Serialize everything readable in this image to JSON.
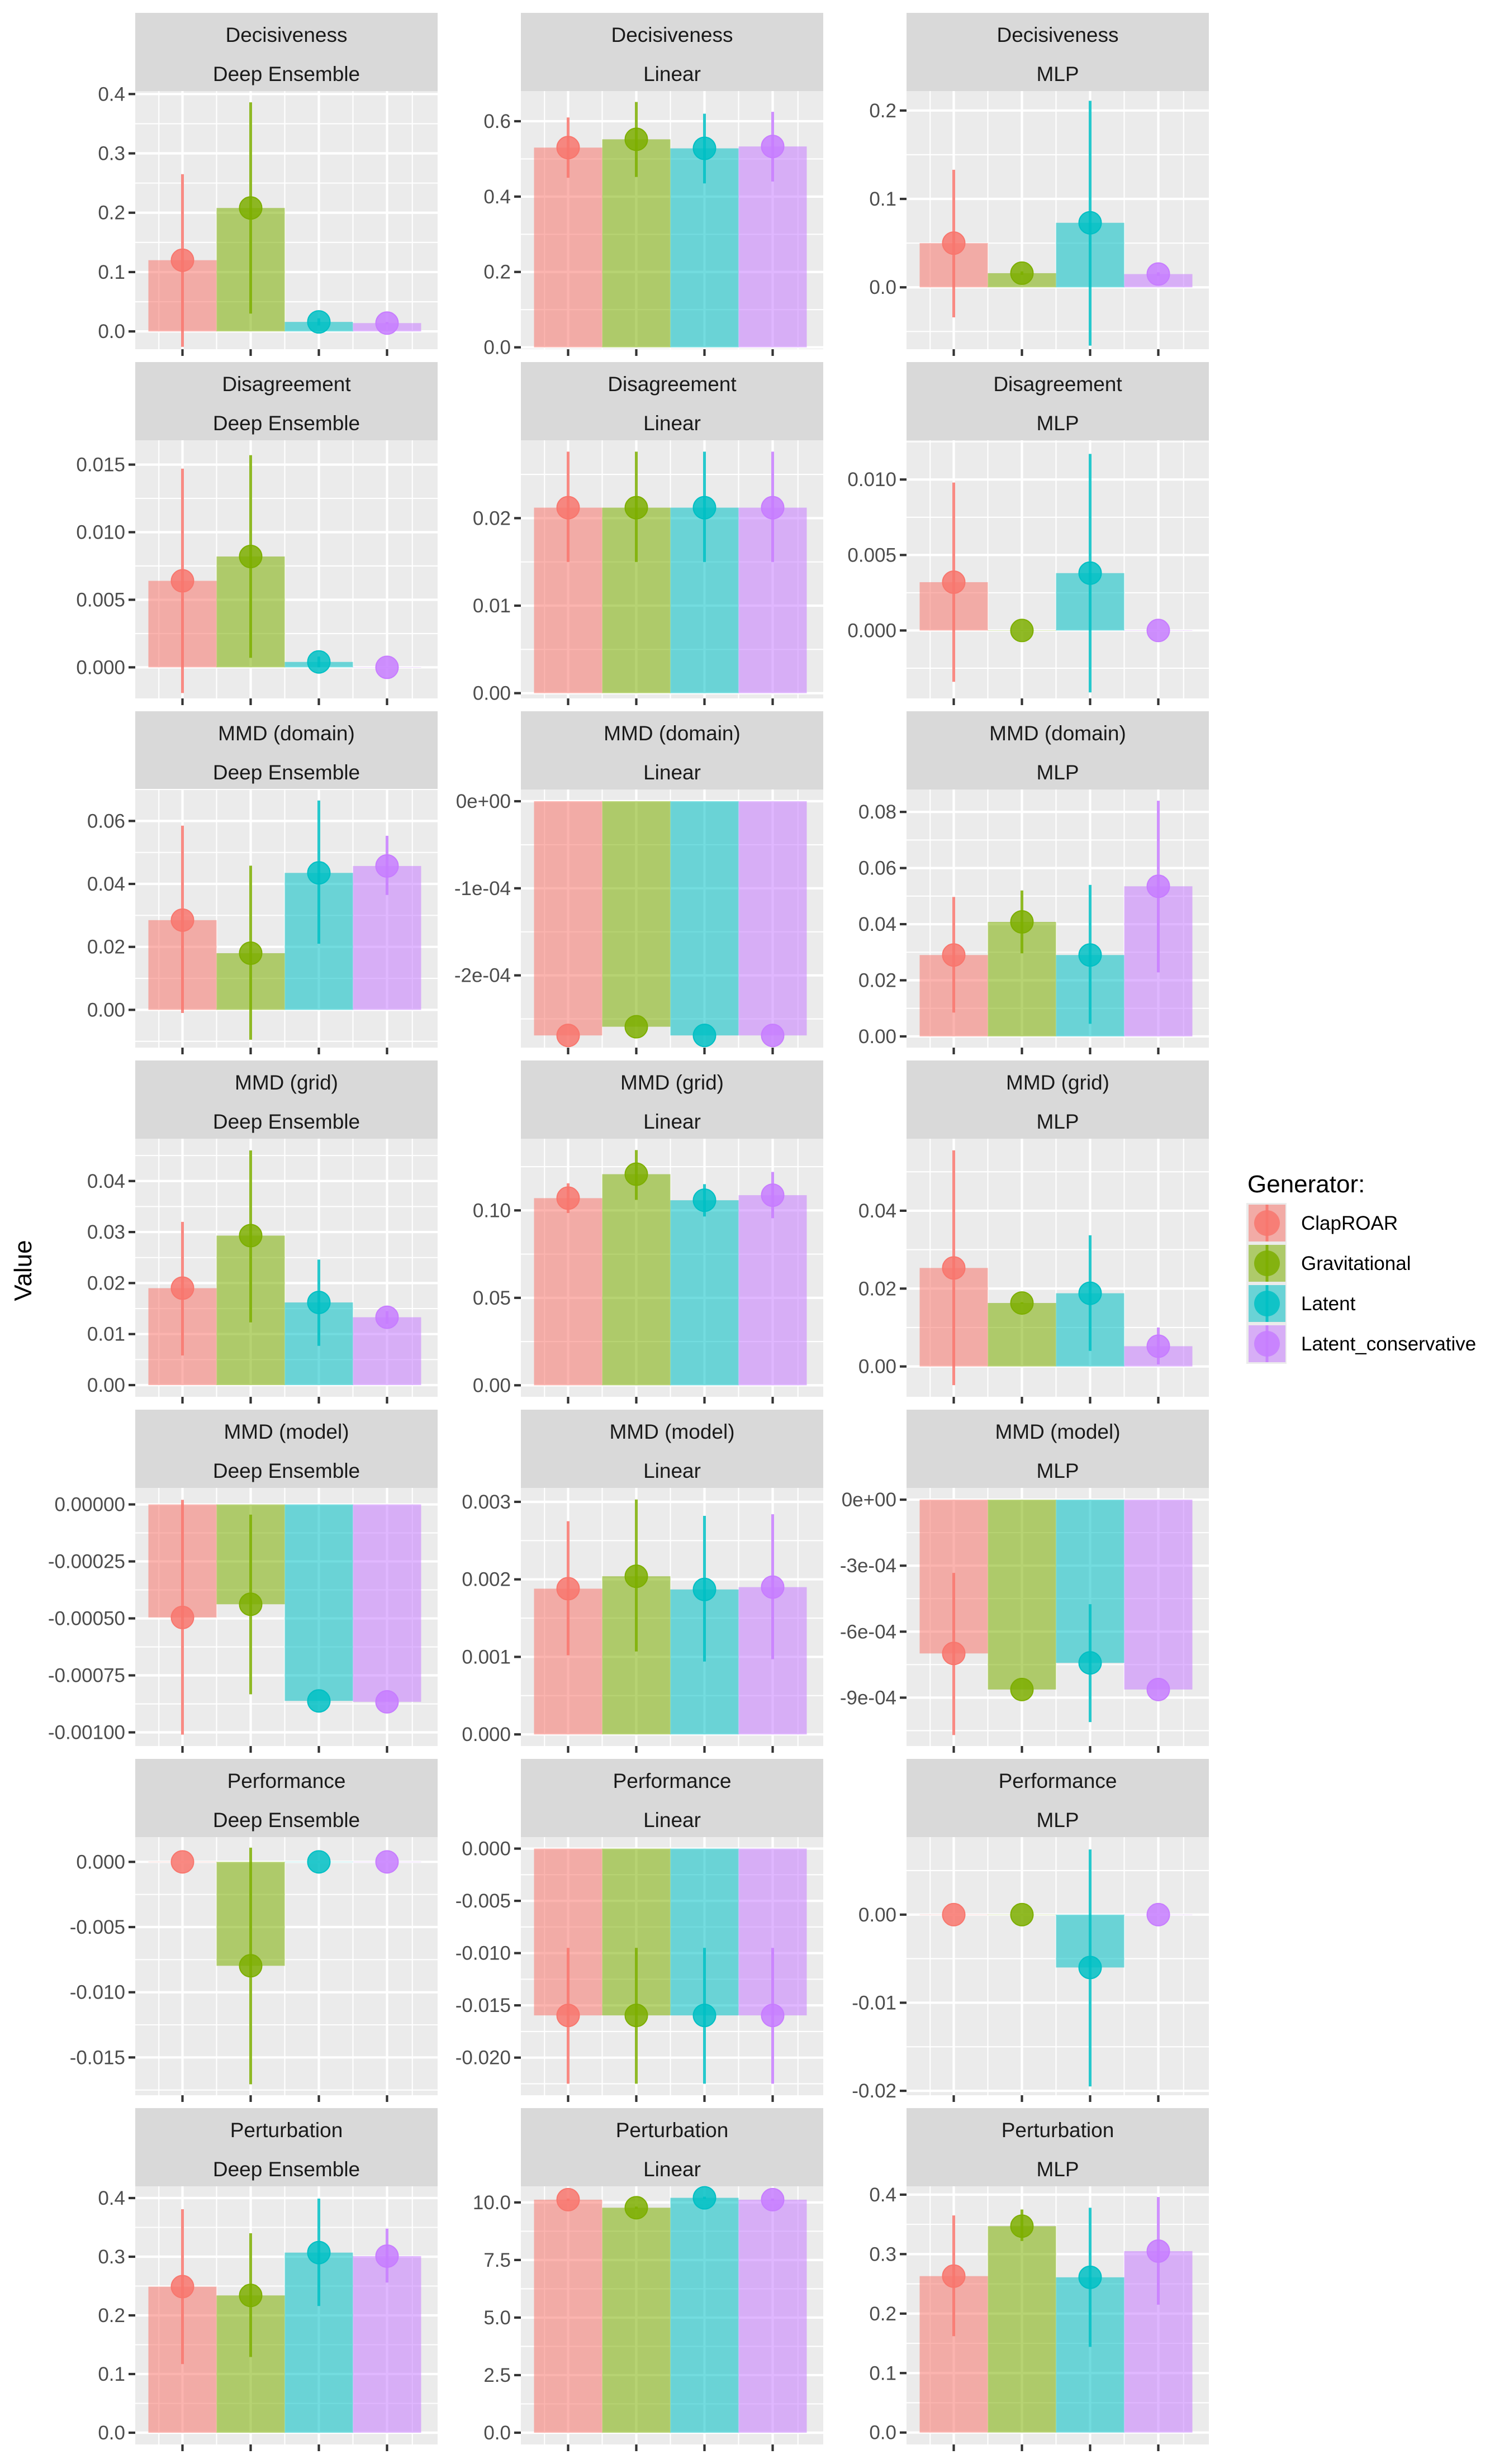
{
  "chart_data": {
    "type": "bar",
    "description": "Faceted bar chart with point + error-bar overlay; rows = metric, columns = model",
    "ylabel": "Value",
    "xlabel": "",
    "legend": {
      "title": "Generator:",
      "placement": "right",
      "entries": [
        "ClapROAR",
        "Gravitational",
        "Latent",
        "Latent_conservative"
      ]
    },
    "series_colors": {
      "ClapROAR": "#F8766D",
      "Gravitational": "#7CAE00",
      "Latent": "#00BFC4",
      "Latent_conservative": "#C77CFF"
    },
    "categories": [
      "ClapROAR",
      "Gravitational",
      "Latent",
      "Latent_conservative"
    ],
    "rows": [
      "Decisiveness",
      "Disagreement",
      "MMD (domain)",
      "MMD (grid)",
      "MMD (model)",
      "Performance",
      "Perturbation"
    ],
    "columns": [
      "Deep Ensemble",
      "Linear",
      "MLP"
    ],
    "panels": [
      {
        "metric": "Decisiveness",
        "model": "Deep Ensemble",
        "ylim": [
          -0.03,
          0.405
        ],
        "yticks": [
          0.0,
          0.1,
          0.2,
          0.3,
          0.4
        ],
        "ytick_labels": [
          "0.0",
          "0.1",
          "0.2",
          "0.3",
          "0.4"
        ],
        "values": [
          0.12,
          0.208,
          0.016,
          0.014
        ],
        "lower": [
          -0.026,
          0.03,
          0.01,
          0.012
        ],
        "upper": [
          0.265,
          0.386,
          0.022,
          0.016
        ]
      },
      {
        "metric": "Decisiveness",
        "model": "Linear",
        "ylim": [
          -0.005,
          0.68
        ],
        "yticks": [
          0.0,
          0.2,
          0.4,
          0.6
        ],
        "ytick_labels": [
          "0.0",
          "0.2",
          "0.4",
          "0.6"
        ],
        "values": [
          0.53,
          0.552,
          0.528,
          0.533
        ],
        "lower": [
          0.45,
          0.452,
          0.435,
          0.44
        ],
        "upper": [
          0.61,
          0.651,
          0.62,
          0.625
        ]
      },
      {
        "metric": "Decisiveness",
        "model": "MLP",
        "ylim": [
          -0.07,
          0.222
        ],
        "yticks": [
          0.0,
          0.1,
          0.2
        ],
        "ytick_labels": [
          "0.0",
          "0.1",
          "0.2"
        ],
        "values": [
          0.05,
          0.016,
          0.073,
          0.015
        ],
        "lower": [
          -0.034,
          0.014,
          -0.066,
          0.013
        ],
        "upper": [
          0.133,
          0.018,
          0.211,
          0.017
        ]
      },
      {
        "metric": "Disagreement",
        "model": "Deep Ensemble",
        "ylim": [
          -0.0023,
          0.0168
        ],
        "yticks": [
          0.0,
          0.005,
          0.01,
          0.015
        ],
        "ytick_labels": [
          "0.000",
          "0.005",
          "0.010",
          "0.015"
        ],
        "values": [
          0.0064,
          0.0082,
          0.0004,
          0.0
        ],
        "lower": [
          -0.0019,
          0.0007,
          0.0,
          0.0
        ],
        "upper": [
          0.0147,
          0.0157,
          0.0008,
          0.0
        ]
      },
      {
        "metric": "Disagreement",
        "model": "Linear",
        "ylim": [
          -0.0006,
          0.0289
        ],
        "yticks": [
          0.0,
          0.01,
          0.02
        ],
        "ytick_labels": [
          "0.00",
          "0.01",
          "0.02"
        ],
        "values": [
          0.0212,
          0.0212,
          0.0212,
          0.0212
        ],
        "lower": [
          0.015,
          0.015,
          0.015,
          0.015
        ],
        "upper": [
          0.0276,
          0.0276,
          0.0276,
          0.0276
        ]
      },
      {
        "metric": "Disagreement",
        "model": "MLP",
        "ylim": [
          -0.0045,
          0.0126
        ],
        "yticks": [
          0.0,
          0.005,
          0.01
        ],
        "ytick_labels": [
          "0.000",
          "0.005",
          "0.010"
        ],
        "values": [
          0.0032,
          0.0,
          0.0038,
          0.0
        ],
        "lower": [
          -0.0034,
          0.0,
          -0.0041,
          0.0
        ],
        "upper": [
          0.0098,
          0.0,
          0.0117,
          0.0
        ]
      },
      {
        "metric": "MMD (domain)",
        "model": "Deep Ensemble",
        "ylim": [
          -0.012,
          0.07
        ],
        "yticks": [
          0.0,
          0.02,
          0.04,
          0.06
        ],
        "ytick_labels": [
          "0.00",
          "0.02",
          "0.04",
          "0.06"
        ],
        "values": [
          0.0285,
          0.018,
          0.0435,
          0.0457
        ],
        "lower": [
          -0.001,
          -0.0095,
          0.021,
          0.0365
        ],
        "upper": [
          0.0585,
          0.0458,
          0.0665,
          0.0553
        ]
      },
      {
        "metric": "MMD (domain)",
        "model": "Linear",
        "ylim": [
          -0.000283,
          1.35e-05
        ],
        "yticks": [
          0.0,
          -0.0001,
          -0.0002
        ],
        "ytick_labels": [
          "0e+00",
          "-1e-04",
          "-2e-04"
        ],
        "values": [
          -0.000269,
          -0.000259,
          -0.000269,
          -0.000269
        ],
        "lower": [
          -0.000269,
          -0.000259,
          -0.000269,
          -0.000269
        ],
        "upper": [
          -0.000269,
          -0.000259,
          -0.000269,
          -0.000269
        ]
      },
      {
        "metric": "MMD (domain)",
        "model": "MLP",
        "ylim": [
          -0.004,
          0.088
        ],
        "yticks": [
          0.0,
          0.02,
          0.04,
          0.06,
          0.08
        ],
        "ytick_labels": [
          "0.00",
          "0.02",
          "0.04",
          "0.06",
          "0.08"
        ],
        "values": [
          0.029,
          0.0408,
          0.029,
          0.0535
        ],
        "lower": [
          0.0085,
          0.0296,
          0.0045,
          0.0228
        ],
        "upper": [
          0.0497,
          0.052,
          0.054,
          0.084
        ]
      },
      {
        "metric": "MMD (grid)",
        "model": "Deep Ensemble",
        "ylim": [
          -0.0023,
          0.0483
        ],
        "yticks": [
          0.0,
          0.01,
          0.02,
          0.03,
          0.04
        ],
        "ytick_labels": [
          "0.00",
          "0.01",
          "0.02",
          "0.03",
          "0.04"
        ],
        "values": [
          0.019,
          0.0293,
          0.0162,
          0.0133
        ],
        "lower": [
          0.0058,
          0.0123,
          0.0077,
          0.012
        ],
        "upper": [
          0.032,
          0.046,
          0.0246,
          0.0145
        ]
      },
      {
        "metric": "MMD (grid)",
        "model": "Linear",
        "ylim": [
          -0.0066,
          0.141
        ],
        "yticks": [
          0.0,
          0.05,
          0.1
        ],
        "ytick_labels": [
          "0.00",
          "0.05",
          "0.10"
        ],
        "values": [
          0.107,
          0.1207,
          0.1058,
          0.1087
        ],
        "lower": [
          0.0985,
          0.106,
          0.0965,
          0.0955
        ],
        "upper": [
          0.1155,
          0.1345,
          0.115,
          0.122
        ]
      },
      {
        "metric": "MMD (grid)",
        "model": "MLP",
        "ylim": [
          -0.0078,
          0.0585
        ],
        "yticks": [
          0.0,
          0.02,
          0.04
        ],
        "ytick_labels": [
          "0.00",
          "0.02",
          "0.04"
        ],
        "values": [
          0.0253,
          0.0163,
          0.0188,
          0.0052
        ],
        "lower": [
          -0.0048,
          0.0161,
          0.004,
          0.0005
        ],
        "upper": [
          0.0555,
          0.0165,
          0.0337,
          0.01
        ]
      },
      {
        "metric": "MMD (model)",
        "model": "Deep Ensemble",
        "ylim": [
          -0.00106,
          7.25e-05
        ],
        "yticks": [
          0.0,
          -0.00025,
          -0.0005,
          -0.00075,
          -0.001
        ],
        "ytick_labels": [
          "0.00000",
          "-0.00025",
          "-0.00050",
          "-0.00075",
          "-0.00100"
        ],
        "values": [
          -0.000496,
          -0.000438,
          -0.000862,
          -0.000866
        ],
        "lower": [
          -0.00101,
          -0.000833,
          -0.000862,
          -0.000866
        ],
        "upper": [
          2e-05,
          -4.5e-05,
          -0.000862,
          -0.000866
        ]
      },
      {
        "metric": "MMD (model)",
        "model": "Linear",
        "ylim": [
          -0.00015,
          0.00318
        ],
        "yticks": [
          0.0,
          0.001,
          0.002,
          0.003
        ],
        "ytick_labels": [
          "0.000",
          "0.001",
          "0.002",
          "0.003"
        ],
        "values": [
          0.00188,
          0.00204,
          0.00187,
          0.0019
        ],
        "lower": [
          0.00102,
          0.00107,
          0.00094,
          0.00097
        ],
        "upper": [
          0.00275,
          0.00303,
          0.00282,
          0.00284
        ]
      },
      {
        "metric": "MMD (model)",
        "model": "MLP",
        "ylim": [
          -0.00112,
          5.35e-05
        ],
        "yticks": [
          0.0,
          -0.0003,
          -0.0006,
          -0.0009
        ],
        "ytick_labels": [
          "0e+00",
          "-3e-04",
          "-6e-04",
          "-9e-04"
        ],
        "values": [
          -0.000699,
          -0.000863,
          -0.000742,
          -0.000863
        ],
        "lower": [
          -0.00107,
          -0.000863,
          -0.001011,
          -0.000863
        ],
        "upper": [
          -0.000333,
          -0.000863,
          -0.000475,
          -0.000863
        ]
      },
      {
        "metric": "Performance",
        "model": "Deep Ensemble",
        "ylim": [
          -0.0179,
          0.0019
        ],
        "yticks": [
          0.0,
          -0.005,
          -0.01,
          -0.015
        ],
        "ytick_labels": [
          "0.000",
          "-0.005",
          "-0.010",
          "-0.015"
        ],
        "values": [
          0.0,
          -0.00797,
          0.0,
          0.0
        ],
        "lower": [
          0.0,
          -0.01706,
          0.0,
          0.0
        ],
        "upper": [
          0.0,
          0.00109,
          0.0,
          0.0
        ]
      },
      {
        "metric": "Performance",
        "model": "Linear",
        "ylim": [
          -0.0236,
          0.0011
        ],
        "yticks": [
          0.0,
          -0.005,
          -0.01,
          -0.015,
          -0.02
        ],
        "ytick_labels": [
          "0.000",
          "-0.005",
          "-0.010",
          "-0.015",
          "-0.020"
        ],
        "values": [
          -0.01596,
          -0.01596,
          -0.01596,
          -0.01596
        ],
        "lower": [
          -0.0225,
          -0.0225,
          -0.0225,
          -0.0225
        ],
        "upper": [
          -0.0095,
          -0.0095,
          -0.0095,
          -0.0095
        ]
      },
      {
        "metric": "Performance",
        "model": "MLP",
        "ylim": [
          -0.0205,
          0.0088
        ],
        "yticks": [
          0.0,
          -0.01,
          -0.02
        ],
        "ytick_labels": [
          "0.00",
          "-0.01",
          "-0.02"
        ],
        "values": [
          0.0,
          0.0,
          -0.006,
          0.0
        ],
        "lower": [
          0.0,
          0.0,
          -0.0195,
          0.0
        ],
        "upper": [
          0.0,
          0.0,
          0.0074,
          0.0
        ]
      },
      {
        "metric": "Perturbation",
        "model": "Deep Ensemble",
        "ylim": [
          -0.02,
          0.42
        ],
        "yticks": [
          0.0,
          0.1,
          0.2,
          0.3,
          0.4
        ],
        "ytick_labels": [
          "0.0",
          "0.1",
          "0.2",
          "0.3",
          "0.4"
        ],
        "values": [
          0.249,
          0.234,
          0.307,
          0.301
        ],
        "lower": [
          0.117,
          0.129,
          0.216,
          0.256
        ],
        "upper": [
          0.381,
          0.34,
          0.399,
          0.348
        ]
      },
      {
        "metric": "Perturbation",
        "model": "Linear",
        "ylim": [
          -0.51,
          10.7
        ],
        "yticks": [
          0.0,
          2.5,
          5.0,
          7.5,
          10.0
        ],
        "ytick_labels": [
          "0.0",
          "2.5",
          "5.0",
          "7.5",
          "10.0"
        ],
        "values": [
          10.12,
          9.77,
          10.2,
          10.12
        ],
        "lower": [
          10.07,
          9.72,
          10.15,
          10.07
        ],
        "upper": [
          10.17,
          9.82,
          10.25,
          10.17
        ]
      },
      {
        "metric": "Perturbation",
        "model": "MLP",
        "ylim": [
          -0.02,
          0.414
        ],
        "yticks": [
          0.0,
          0.1,
          0.2,
          0.3,
          0.4
        ],
        "ytick_labels": [
          "0.0",
          "0.1",
          "0.2",
          "0.3",
          "0.4"
        ],
        "values": [
          0.263,
          0.347,
          0.261,
          0.305
        ],
        "lower": [
          0.162,
          0.322,
          0.144,
          0.215
        ],
        "upper": [
          0.365,
          0.375,
          0.378,
          0.396
        ]
      }
    ]
  }
}
